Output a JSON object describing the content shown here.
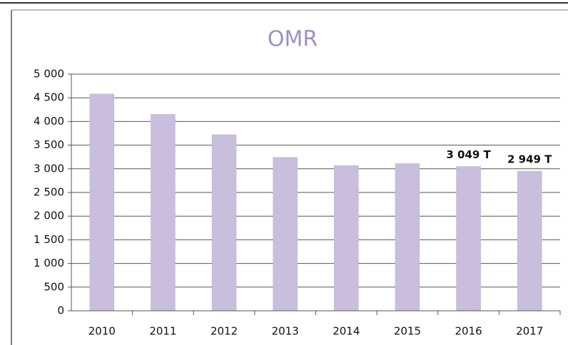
{
  "chart_data": {
    "type": "bar",
    "title": "OMR",
    "categories": [
      "2010",
      "2011",
      "2012",
      "2013",
      "2014",
      "2015",
      "2016",
      "2017"
    ],
    "values": [
      4580,
      4150,
      3720,
      3240,
      3070,
      3110,
      3049,
      2949
    ],
    "value_labels": [
      null,
      null,
      null,
      null,
      null,
      null,
      "3 049 T",
      "2 949 T"
    ],
    "color": "#c9bfdc",
    "ylim": [
      0,
      5000
    ],
    "yticks": [
      0,
      500,
      {
        "value": 1000,
        "label": "1 000"
      },
      {
        "value": 1500,
        "label": "1 500"
      },
      {
        "value": 2000,
        "label": "2 000"
      },
      {
        "value": 2500,
        "label": "2 500"
      },
      {
        "value": 3000,
        "label": "3 000"
      },
      {
        "value": 3500,
        "label": "3 500"
      },
      {
        "value": 4000,
        "label": "4 000"
      },
      {
        "value": 4500,
        "label": "4 500"
      },
      {
        "value": 5000,
        "label": "5 000"
      }
    ],
    "grid": true
  }
}
